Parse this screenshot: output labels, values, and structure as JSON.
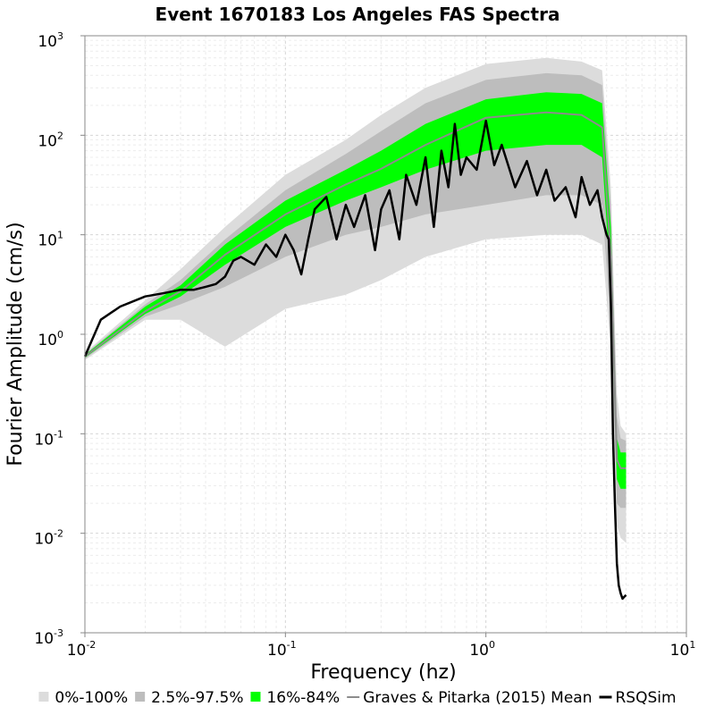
{
  "chart_data": {
    "type": "line",
    "title": "Event 1670183 Los Angeles FAS Spectra",
    "xlabel": "Frequency (hz)",
    "ylabel": "Fourier Amplitude (cm/s)",
    "xscale": "log",
    "yscale": "log",
    "xlim": [
      0.01,
      10
    ],
    "ylim": [
      0.001,
      1000
    ],
    "x_ticks": [
      {
        "base": "10",
        "exp": "-2"
      },
      {
        "base": "10",
        "exp": "-1"
      },
      {
        "base": "10",
        "exp": "0"
      },
      {
        "base": "10",
        "exp": "1"
      }
    ],
    "y_ticks": [
      {
        "base": "10",
        "exp": "-3"
      },
      {
        "base": "10",
        "exp": "-2"
      },
      {
        "base": "10",
        "exp": "-1"
      },
      {
        "base": "10",
        "exp": "0"
      },
      {
        "base": "10",
        "exp": "1"
      },
      {
        "base": "10",
        "exp": "2"
      },
      {
        "base": "10",
        "exp": "3"
      }
    ],
    "grid": true,
    "legend_position": "bottom",
    "colors": {
      "band_0_100": "#dcdcdc",
      "band_2_5_97_5": "#bdbdbd",
      "band_16_84": "#00ff00",
      "gp_mean": "#8c8c8c",
      "rsqsim": "#000000"
    },
    "bands": [
      {
        "name": "0%-100%",
        "x": [
          0.01,
          0.02,
          0.03,
          0.05,
          0.1,
          0.2,
          0.3,
          0.5,
          1.0,
          2.0,
          3.0,
          3.8,
          4.2,
          4.5,
          4.7,
          5.0
        ],
        "lower": [
          0.55,
          1.4,
          1.4,
          0.75,
          1.8,
          2.5,
          3.5,
          6,
          9,
          10,
          10,
          8,
          0.7,
          0.012,
          0.009,
          0.008
        ],
        "upper": [
          0.65,
          2.2,
          4.5,
          12,
          40,
          90,
          160,
          300,
          520,
          600,
          550,
          450,
          30,
          0.25,
          0.12,
          0.1
        ]
      },
      {
        "name": "2.5%-97.5%",
        "x": [
          0.01,
          0.02,
          0.03,
          0.05,
          0.1,
          0.2,
          0.3,
          0.5,
          1.0,
          2.0,
          3.0,
          3.8,
          4.2,
          4.5,
          4.7,
          5.0
        ],
        "lower": [
          0.57,
          1.5,
          2.0,
          3.0,
          6,
          10,
          12,
          16,
          20,
          25,
          25,
          20,
          1.2,
          0.02,
          0.018,
          0.018
        ],
        "upper": [
          0.63,
          2.0,
          3.5,
          9,
          28,
          65,
          110,
          210,
          360,
          420,
          400,
          320,
          20,
          0.15,
          0.09,
          0.085
        ]
      },
      {
        "name": "16%-84%",
        "x": [
          0.01,
          0.02,
          0.03,
          0.05,
          0.1,
          0.2,
          0.3,
          0.5,
          1.0,
          2.0,
          3.0,
          3.8,
          4.2,
          4.5,
          4.7,
          5.0
        ],
        "lower": [
          0.58,
          1.6,
          2.4,
          5.0,
          12,
          22,
          30,
          45,
          70,
          80,
          80,
          60,
          3,
          0.035,
          0.028,
          0.028
        ],
        "upper": [
          0.62,
          1.9,
          3.1,
          8,
          22,
          45,
          70,
          130,
          230,
          270,
          260,
          210,
          12,
          0.09,
          0.065,
          0.065
        ]
      }
    ],
    "series": [
      {
        "name": "Graves & Pitarka (2015) Mean",
        "x": [
          0.01,
          0.02,
          0.03,
          0.05,
          0.1,
          0.2,
          0.3,
          0.5,
          1.0,
          2.0,
          3.0,
          3.8,
          4.2,
          4.5,
          4.7,
          5.0
        ],
        "y": [
          0.6,
          1.7,
          2.7,
          6.3,
          16,
          32,
          46,
          80,
          150,
          170,
          160,
          120,
          6,
          0.055,
          0.045,
          0.045
        ]
      },
      {
        "name": "RSQSim",
        "x": [
          0.01,
          0.012,
          0.015,
          0.02,
          0.025,
          0.03,
          0.035,
          0.04,
          0.045,
          0.05,
          0.055,
          0.06,
          0.07,
          0.08,
          0.09,
          0.1,
          0.11,
          0.12,
          0.13,
          0.14,
          0.16,
          0.18,
          0.2,
          0.22,
          0.25,
          0.28,
          0.3,
          0.33,
          0.37,
          0.4,
          0.45,
          0.5,
          0.55,
          0.6,
          0.65,
          0.7,
          0.75,
          0.8,
          0.9,
          1.0,
          1.1,
          1.2,
          1.4,
          1.6,
          1.8,
          2.0,
          2.2,
          2.5,
          2.8,
          3.0,
          3.3,
          3.6,
          3.8,
          4.0,
          4.1,
          4.2,
          4.3,
          4.4,
          4.5,
          4.6,
          4.7,
          4.8,
          4.9,
          5.0
        ],
        "y": [
          0.6,
          1.4,
          1.9,
          2.4,
          2.6,
          2.8,
          2.8,
          3.0,
          3.2,
          3.8,
          5.5,
          6.0,
          5.0,
          8.0,
          6.0,
          10.0,
          7.0,
          4.0,
          9.0,
          18,
          24,
          9,
          20,
          12,
          25,
          7,
          18,
          28,
          9,
          40,
          20,
          60,
          12,
          70,
          30,
          130,
          40,
          60,
          45,
          140,
          50,
          80,
          30,
          55,
          25,
          45,
          22,
          30,
          15,
          38,
          20,
          28,
          15,
          10,
          9,
          2,
          0.1,
          0.02,
          0.005,
          0.003,
          0.0025,
          0.0022,
          0.0023,
          0.0024
        ]
      }
    ]
  }
}
